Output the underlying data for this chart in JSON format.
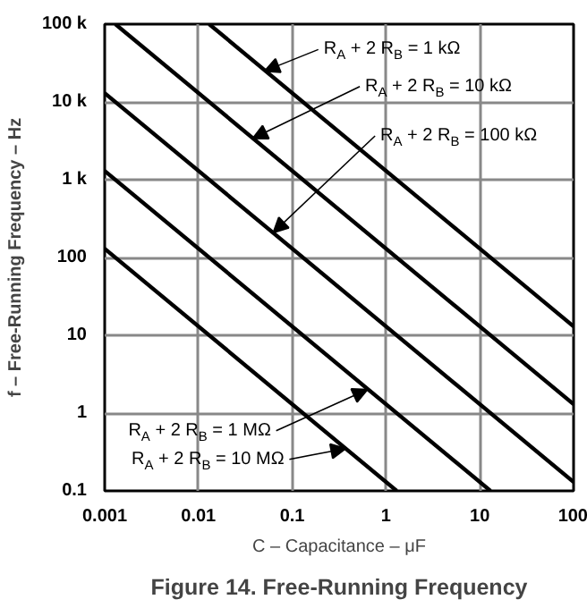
{
  "chart_data": {
    "type": "line",
    "title": "Figure 14. Free-Running Frequency",
    "xlabel": "C – Capacitance – μF",
    "ylabel": "f – Free-Running Frequency – Hz",
    "log": "xy",
    "grid": true,
    "marker": "none",
    "line_style": "solid",
    "xlim": [
      0.001,
      100
    ],
    "ylim": [
      0.1,
      100000
    ],
    "xticks": [
      0.001,
      0.01,
      0.1,
      1,
      10,
      100
    ],
    "yticks": [
      0.1,
      1,
      10,
      100,
      {
        "value": 1000,
        "label": "1 k"
      },
      {
        "value": 10000,
        "label": "10 k"
      },
      {
        "value": 100000,
        "label": "100 k"
      }
    ],
    "series": [
      {
        "color": "#000000",
        "x": [
          0.013,
          100
        ],
        "values": [
          100000,
          13
        ]
      },
      {
        "color": "#000000",
        "x": [
          0.0013,
          100
        ],
        "values": [
          100000,
          1.3
        ]
      },
      {
        "color": "#000000",
        "x": [
          0.001,
          100
        ],
        "values": [
          13000,
          0.13
        ]
      },
      {
        "color": "#000000",
        "x": [
          0.001,
          13
        ],
        "values": [
          1300,
          0.1
        ]
      },
      {
        "color": "#000000",
        "x": [
          0.001,
          1.3
        ],
        "values": [
          130,
          0.1
        ]
      }
    ],
    "annotations": [
      {
        "text": "R$_{A}$ + 2 R$_{B}$ = 1 kΩ",
        "x": 0.051,
        "y": 25000
      },
      {
        "text": "R$_{A}$ + 2 R$_{B}$ = 10 kΩ",
        "x": 0.038,
        "y": 3400
      },
      {
        "text": "R$_{A}$ + 2 R$_{B}$ = 100 kΩ",
        "x": 0.063,
        "y": 210
      },
      {
        "text": "R$_{A}$ + 2 R$_{B}$ = 1 MΩ",
        "x": 0.63,
        "y": 2
      },
      {
        "text": "R$_{A}$ + 2 R$_{B}$ = 10 MΩ",
        "x": 0.37,
        "y": 0.35
      }
    ]
  }
}
